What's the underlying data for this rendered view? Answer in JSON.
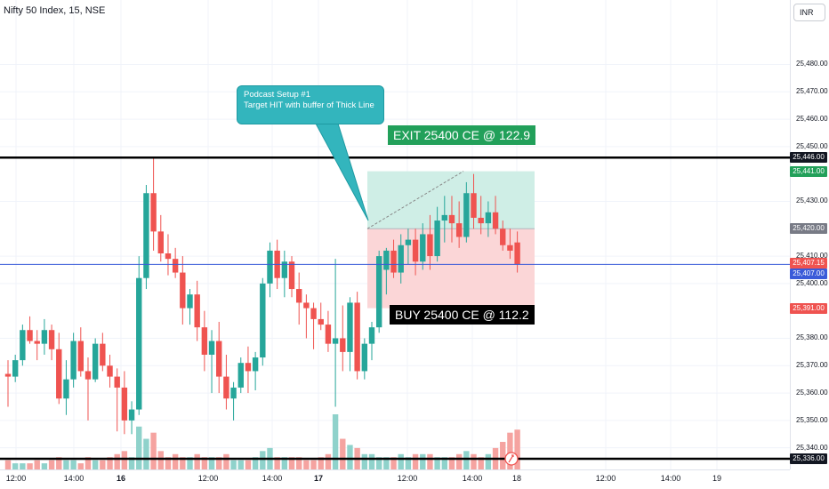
{
  "header": {
    "title": "Nifty 50 Index, 15, NSE",
    "currency_button": "INR"
  },
  "colors": {
    "up": "#26a69a",
    "down": "#ef5350",
    "vol_up": "#8fd2cb",
    "vol_down": "#f5a3a0",
    "target_zone": "#cfeee6",
    "stop_zone": "#fbd6d7",
    "blue_line": "#3a5bd9",
    "black_line": "#000000"
  },
  "annotations": {
    "callout_line1": "Podcast Setup #1",
    "callout_line2": "Target HIT with buffer of Thick Line",
    "exit_label": "EXIT 25400 CE @ 122.9",
    "buy_label": "BUY 25400 CE @ 112.2"
  },
  "price_tags": [
    {
      "value": "25,446.00",
      "price": 25446,
      "color": "#131722",
      "text_color": "#ffffff"
    },
    {
      "value": "25,441.00",
      "price": 25441,
      "color": "#22a05a",
      "text_color": "#ffffff"
    },
    {
      "value": "25,420.00",
      "price": 25420,
      "color": "#787b86",
      "text_color": "#ffffff"
    },
    {
      "value": "25,407.15",
      "price": 25407.15,
      "color": "#ef5350",
      "text_color": "#ffffff"
    },
    {
      "value": "25,407.00",
      "price": 25407,
      "color": "#3a5bd9",
      "text_color": "#ffffff"
    },
    {
      "value": "25,391.00",
      "price": 25391,
      "color": "#ef5350",
      "text_color": "#ffffff"
    },
    {
      "value": "25,336.00",
      "price": 25336,
      "color": "#131722",
      "text_color": "#ffffff"
    }
  ],
  "chart_data": {
    "type": "candlestick",
    "title": "Nifty 50 Index, 15, NSE",
    "y_axis": {
      "ticks": [
        "25,480.00",
        "25,470.00",
        "25,460.00",
        "25,450.00",
        "25,430.00",
        "25,410.00",
        "25,400.00",
        "25,380.00",
        "25,370.00",
        "25,360.00",
        "25,350.00",
        "25,340.00"
      ],
      "range": [
        25334,
        25494
      ]
    },
    "x_axis": {
      "ticks": [
        {
          "label": "12:00",
          "bold": false
        },
        {
          "label": "14:00",
          "bold": false
        },
        {
          "label": "16",
          "bold": true
        },
        {
          "label": "12:00",
          "bold": false
        },
        {
          "label": "14:00",
          "bold": false
        },
        {
          "label": "17",
          "bold": true
        },
        {
          "label": "12:00",
          "bold": false
        },
        {
          "label": "14:00",
          "bold": false
        },
        {
          "label": "18",
          "bold": false
        },
        {
          "label": "12:00",
          "bold": false
        },
        {
          "label": "14:00",
          "bold": false
        },
        {
          "label": "19",
          "bold": false
        }
      ]
    },
    "horizontal_lines": [
      {
        "price": 25446,
        "style": "thick",
        "color": "#000000"
      },
      {
        "price": 25407,
        "style": "thin",
        "color": "#3a5bd9"
      },
      {
        "price": 25336,
        "style": "thick",
        "color": "#000000"
      }
    ],
    "position": {
      "entry": 25420,
      "target": 25441,
      "stop": 25391
    },
    "candles": [
      [
        25367,
        25372,
        25355,
        25366
      ],
      [
        25366,
        25374,
        25364,
        25372
      ],
      [
        25372,
        25385,
        25370,
        25383
      ],
      [
        25383,
        25388,
        25378,
        25379
      ],
      [
        25379,
        25383,
        25372,
        25378
      ],
      [
        25378,
        25387,
        25374,
        25383
      ],
      [
        25383,
        25385,
        25372,
        25376
      ],
      [
        25376,
        25382,
        25356,
        25358
      ],
      [
        25358,
        25372,
        25352,
        25365
      ],
      [
        25365,
        25382,
        25362,
        25379
      ],
      [
        25379,
        25384,
        25366,
        25368
      ],
      [
        25368,
        25373,
        25350,
        25365
      ],
      [
        25365,
        25380,
        25364,
        25378
      ],
      [
        25378,
        25382,
        25368,
        25370
      ],
      [
        25370,
        25374,
        25362,
        25366
      ],
      [
        25366,
        25369,
        25346,
        25362
      ],
      [
        25362,
        25368,
        25345,
        25350
      ],
      [
        25350,
        25357,
        25345,
        25354
      ],
      [
        25354,
        25410,
        25352,
        25402
      ],
      [
        25402,
        25436,
        25398,
        25433
      ],
      [
        25433,
        25446,
        25412,
        25419
      ],
      [
        25419,
        25425,
        25408,
        25411
      ],
      [
        25411,
        25418,
        25403,
        25409
      ],
      [
        25409,
        25413,
        25402,
        25404
      ],
      [
        25404,
        25410,
        25385,
        25391
      ],
      [
        25391,
        25398,
        25385,
        25396
      ],
      [
        25396,
        25401,
        25379,
        25384
      ],
      [
        25384,
        25390,
        25368,
        25374
      ],
      [
        25374,
        25383,
        25360,
        25379
      ],
      [
        25379,
        25386,
        25360,
        25366
      ],
      [
        25366,
        25374,
        25354,
        25358
      ],
      [
        25358,
        25364,
        25350,
        25362
      ],
      [
        25362,
        25373,
        25360,
        25371
      ],
      [
        25371,
        25377,
        25360,
        25368
      ],
      [
        25368,
        25375,
        25361,
        25373
      ],
      [
        25373,
        25402,
        25370,
        25400
      ],
      [
        25400,
        25415,
        25395,
        25412
      ],
      [
        25412,
        25416,
        25398,
        25402
      ],
      [
        25402,
        25412,
        25395,
        25408
      ],
      [
        25408,
        25410,
        25395,
        25398
      ],
      [
        25398,
        25404,
        25385,
        25393
      ],
      [
        25393,
        25396,
        25380,
        25391
      ],
      [
        25391,
        25393,
        25376,
        25387
      ],
      [
        25387,
        25393,
        25383,
        25385
      ],
      [
        25385,
        25390,
        25375,
        25378
      ],
      [
        25378,
        25409,
        25355,
        25380
      ],
      [
        25380,
        25392,
        25368,
        25375
      ],
      [
        25375,
        25395,
        25368,
        25393
      ],
      [
        25393,
        25397,
        25365,
        25368
      ],
      [
        25368,
        25380,
        25365,
        25378
      ],
      [
        25378,
        25386,
        25372,
        25384
      ],
      [
        25384,
        25412,
        25382,
        25410
      ],
      [
        25405,
        25413,
        25396,
        25412
      ],
      [
        25412,
        25416,
        25402,
        25404
      ],
      [
        25404,
        25418,
        25400,
        25414
      ],
      [
        25414,
        25420,
        25407,
        25416
      ],
      [
        25416,
        25420,
        25403,
        25408
      ],
      [
        25408,
        25422,
        25405,
        25418
      ],
      [
        25418,
        25425,
        25405,
        25410
      ],
      [
        25410,
        25428,
        25408,
        25423
      ],
      [
        25423,
        25432,
        25415,
        25425
      ],
      [
        25425,
        25432,
        25415,
        25422
      ],
      [
        25422,
        25430,
        25413,
        25417
      ],
      [
        25417,
        25437,
        25415,
        25433
      ],
      [
        25433,
        25440,
        25420,
        25424
      ],
      [
        25424,
        25432,
        25418,
        25422
      ],
      [
        25422,
        25430,
        25417,
        25426
      ],
      [
        25426,
        25432,
        25418,
        25420
      ],
      [
        25420,
        25423,
        25412,
        25414
      ],
      [
        25414,
        25420,
        25409,
        25412
      ],
      [
        25415,
        25419,
        25404,
        25407
      ]
    ],
    "volume": [
      3,
      2,
      2,
      2,
      3,
      2,
      3,
      4,
      3,
      3,
      2,
      4,
      3,
      3,
      4,
      5,
      6,
      4,
      14,
      10,
      12,
      6,
      4,
      5,
      4,
      4,
      5,
      4,
      4,
      4,
      5,
      3,
      3,
      3,
      4,
      6,
      7,
      4,
      4,
      4,
      4,
      3,
      3,
      4,
      5,
      18,
      10,
      8,
      7,
      5,
      5,
      4,
      4,
      4,
      5,
      4,
      5,
      5,
      5,
      4,
      4,
      4,
      5,
      6,
      5,
      4,
      5,
      7,
      9,
      12,
      13
    ]
  }
}
